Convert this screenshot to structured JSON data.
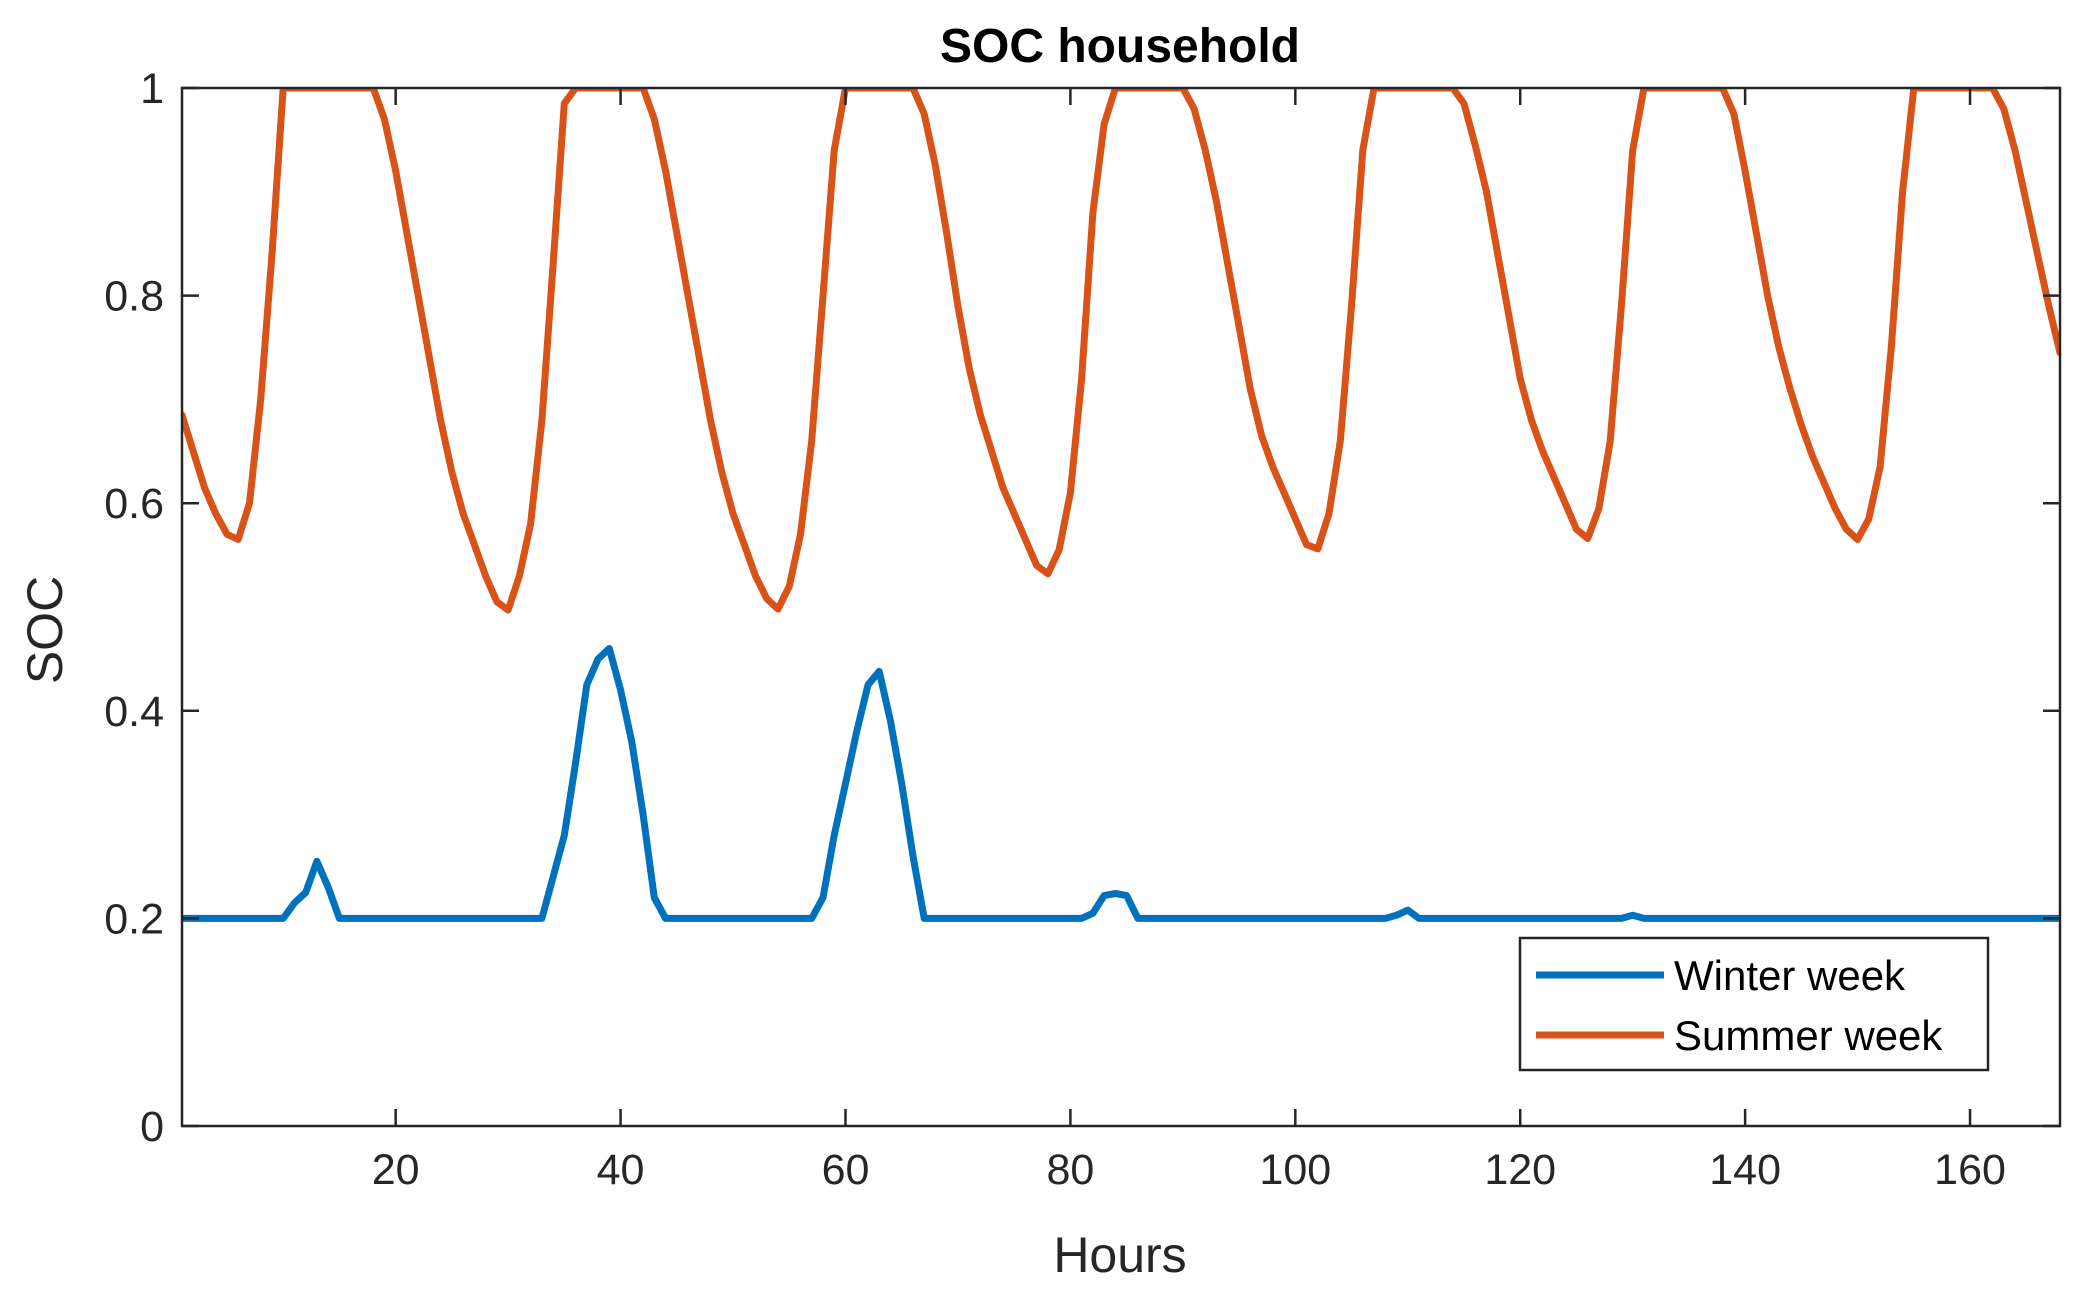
{
  "chart_data": {
    "type": "line",
    "title": "SOC household",
    "xlabel": "Hours",
    "ylabel": "SOC",
    "xlim": [
      1,
      168
    ],
    "ylim": [
      0,
      1
    ],
    "xticks": [
      20,
      40,
      60,
      80,
      100,
      120,
      140,
      160
    ],
    "yticks": [
      0,
      0.2,
      0.4,
      0.6,
      0.8,
      1
    ],
    "ytick_labels": [
      "0",
      "0.2",
      "0.4",
      "0.6",
      "0.8",
      "1"
    ],
    "grid": false,
    "legend_position": "bottom-right",
    "series": [
      {
        "name": "Winter week",
        "color": "#0072BD",
        "x": [
          1,
          10,
          11,
          12,
          13,
          14,
          15,
          33,
          34,
          35,
          36,
          37,
          38,
          39,
          40,
          41,
          42,
          43,
          44,
          57,
          58,
          59,
          60,
          61,
          62,
          63,
          64,
          65,
          66,
          67,
          81,
          82,
          83,
          84,
          85,
          86,
          108,
          109,
          110,
          111,
          129,
          130,
          131,
          168
        ],
        "values": [
          0.2,
          0.2,
          0.215,
          0.225,
          0.255,
          0.23,
          0.2,
          0.2,
          0.24,
          0.28,
          0.35,
          0.425,
          0.45,
          0.46,
          0.42,
          0.37,
          0.3,
          0.22,
          0.2,
          0.2,
          0.22,
          0.28,
          0.33,
          0.38,
          0.425,
          0.438,
          0.39,
          0.33,
          0.26,
          0.2,
          0.2,
          0.205,
          0.222,
          0.224,
          0.222,
          0.2,
          0.2,
          0.203,
          0.208,
          0.2,
          0.2,
          0.203,
          0.2,
          0.2
        ]
      },
      {
        "name": "Summer week",
        "color": "#D95319",
        "x": [
          1,
          2,
          3,
          4,
          5,
          6,
          7,
          8,
          9,
          10,
          11,
          12,
          13,
          14,
          15,
          16,
          17,
          18,
          19,
          20,
          21,
          22,
          23,
          24,
          25,
          26,
          27,
          28,
          29,
          30,
          31,
          32,
          33,
          34,
          35,
          36,
          37,
          38,
          39,
          40,
          41,
          42,
          43,
          44,
          45,
          46,
          47,
          48,
          49,
          50,
          51,
          52,
          53,
          54,
          55,
          56,
          57,
          58,
          59,
          60,
          61,
          62,
          63,
          64,
          65,
          66,
          67,
          68,
          69,
          70,
          71,
          72,
          73,
          74,
          75,
          76,
          77,
          78,
          79,
          80,
          81,
          82,
          83,
          84,
          85,
          86,
          87,
          88,
          89,
          90,
          91,
          92,
          93,
          94,
          95,
          96,
          97,
          98,
          99,
          100,
          101,
          102,
          103,
          104,
          105,
          106,
          107,
          108,
          109,
          110,
          111,
          112,
          113,
          114,
          115,
          116,
          117,
          118,
          119,
          120,
          121,
          122,
          123,
          124,
          125,
          126,
          127,
          128,
          129,
          130,
          131,
          132,
          133,
          134,
          135,
          136,
          137,
          138,
          139,
          140,
          141,
          142,
          143,
          144,
          145,
          146,
          147,
          148,
          149,
          150,
          151,
          152,
          153,
          154,
          155,
          156,
          157,
          158,
          159,
          160,
          161,
          162,
          163,
          164,
          165,
          166,
          167,
          168
        ],
        "values": [
          0.685,
          0.65,
          0.615,
          0.59,
          0.57,
          0.565,
          0.6,
          0.7,
          0.84,
          1.0,
          1.0,
          1.0,
          1.0,
          1.0,
          1.0,
          1.0,
          1.0,
          1.0,
          0.97,
          0.92,
          0.86,
          0.8,
          0.74,
          0.68,
          0.63,
          0.59,
          0.56,
          0.53,
          0.505,
          0.497,
          0.53,
          0.58,
          0.68,
          0.83,
          0.985,
          1.0,
          1.0,
          1.0,
          1.0,
          1.0,
          1.0,
          1.0,
          0.97,
          0.92,
          0.86,
          0.8,
          0.74,
          0.68,
          0.63,
          0.59,
          0.56,
          0.53,
          0.508,
          0.498,
          0.52,
          0.57,
          0.66,
          0.8,
          0.94,
          1.0,
          1.0,
          1.0,
          1.0,
          1.0,
          1.0,
          1.0,
          0.975,
          0.925,
          0.86,
          0.79,
          0.73,
          0.685,
          0.65,
          0.615,
          0.59,
          0.565,
          0.54,
          0.532,
          0.555,
          0.61,
          0.72,
          0.88,
          0.965,
          1.0,
          1.0,
          1.0,
          1.0,
          1.0,
          1.0,
          1.0,
          0.98,
          0.94,
          0.89,
          0.83,
          0.77,
          0.71,
          0.665,
          0.635,
          0.61,
          0.585,
          0.56,
          0.556,
          0.59,
          0.66,
          0.79,
          0.94,
          1.0,
          1.0,
          1.0,
          1.0,
          1.0,
          1.0,
          1.0,
          1.0,
          0.985,
          0.945,
          0.9,
          0.84,
          0.78,
          0.72,
          0.68,
          0.65,
          0.625,
          0.6,
          0.575,
          0.566,
          0.595,
          0.66,
          0.79,
          0.94,
          1.0,
          1.0,
          1.0,
          1.0,
          1.0,
          1.0,
          1.0,
          1.0,
          0.975,
          0.92,
          0.86,
          0.8,
          0.75,
          0.71,
          0.675,
          0.645,
          0.62,
          0.595,
          0.575,
          0.565,
          0.585,
          0.635,
          0.75,
          0.9,
          1.0,
          1.0,
          1.0,
          1.0,
          1.0,
          1.0,
          1.0,
          1.0,
          0.98,
          0.94,
          0.89,
          0.84,
          0.79,
          0.745
        ]
      }
    ]
  }
}
